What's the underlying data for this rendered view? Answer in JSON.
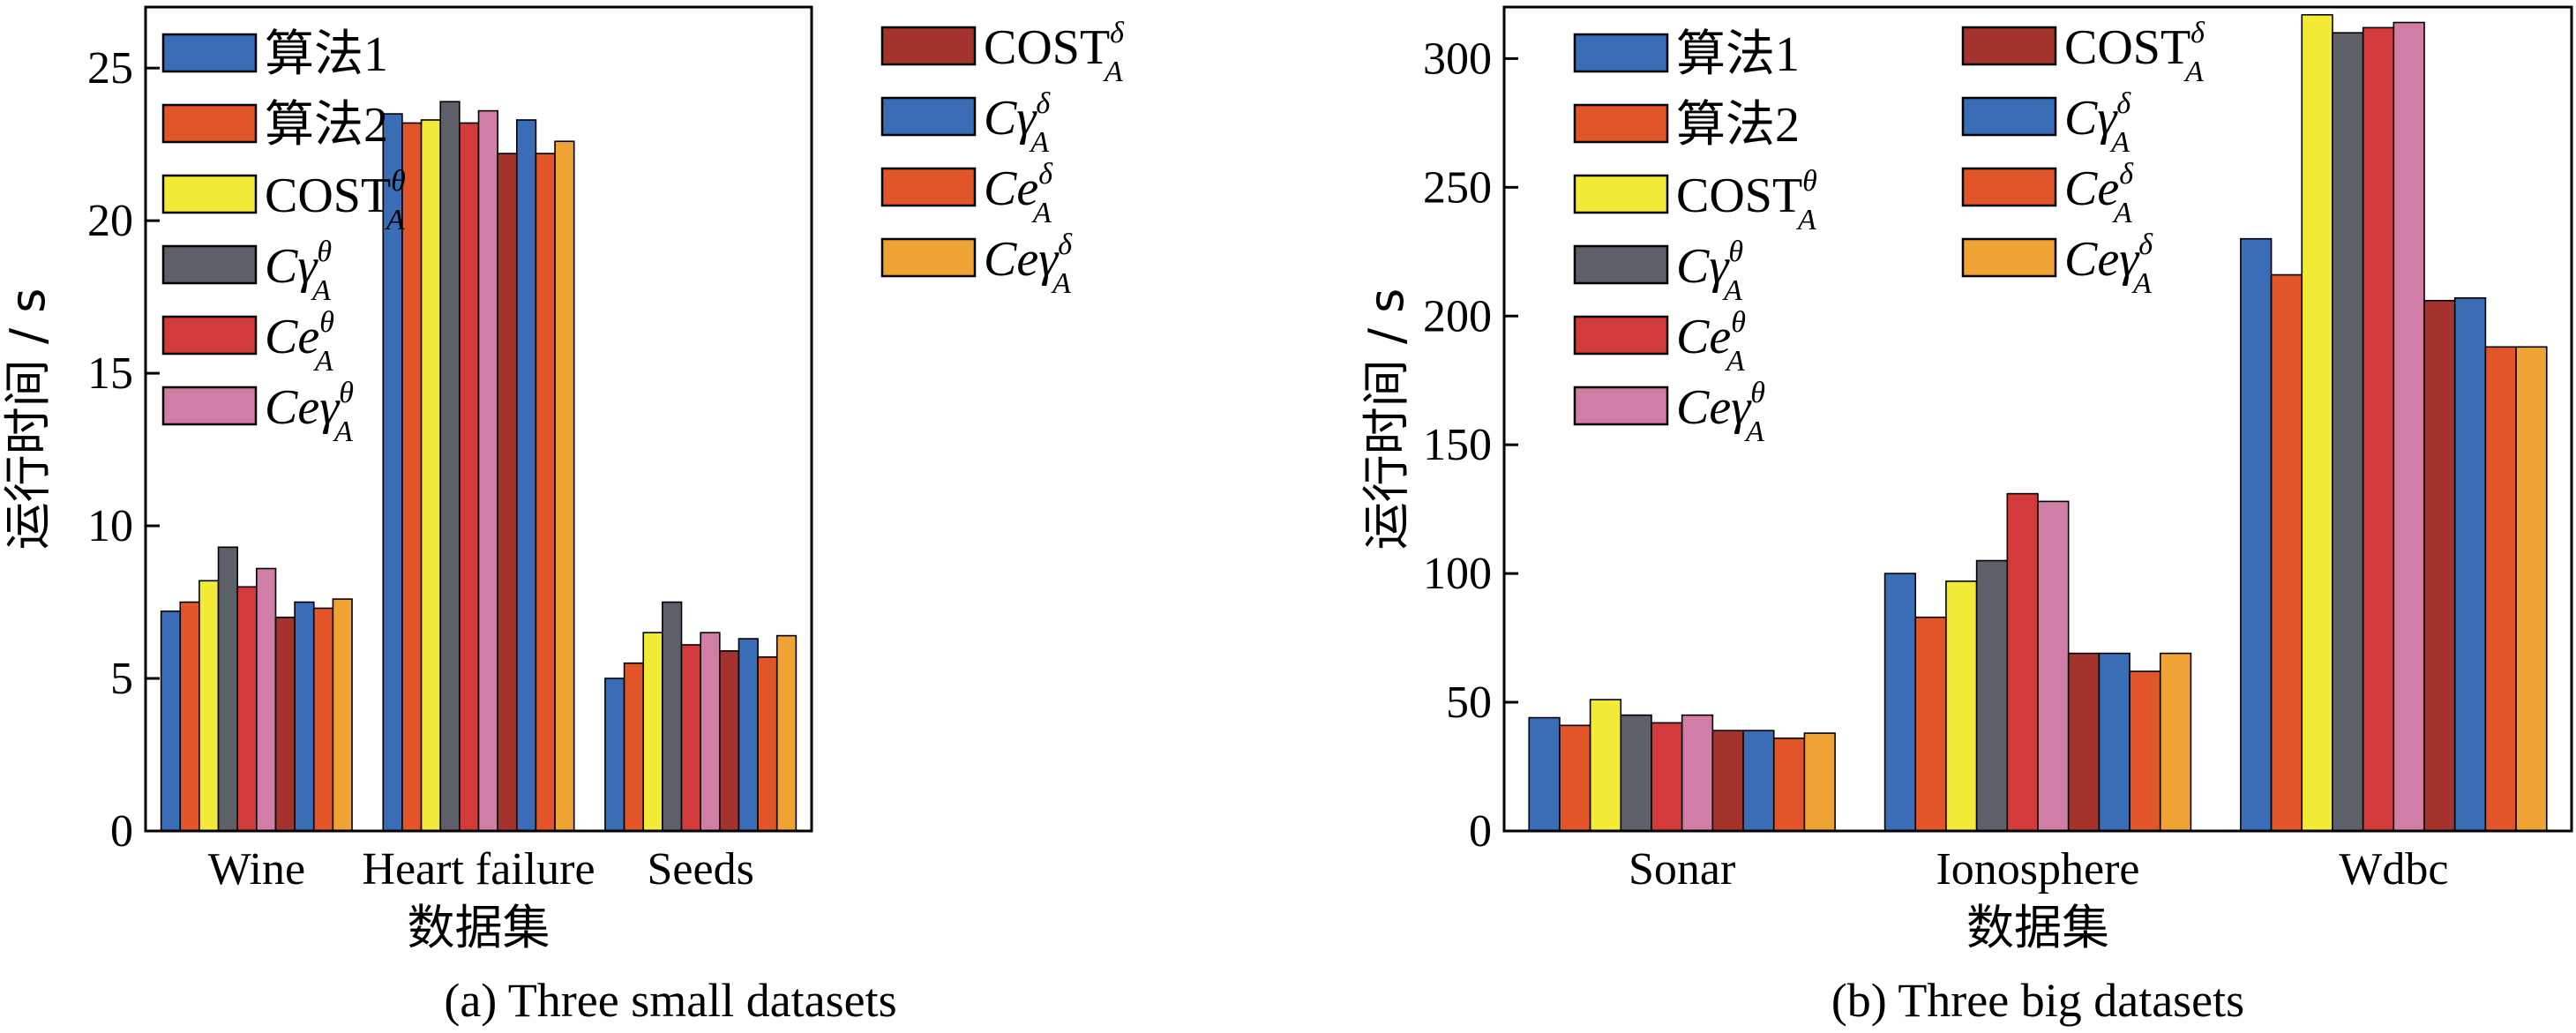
{
  "series_names": [
    {
      "main": "算法1",
      "italic": false,
      "sup": "",
      "sub": ""
    },
    {
      "main": "算法2",
      "italic": false,
      "sup": "",
      "sub": ""
    },
    {
      "main": "COST",
      "italic": false,
      "sup": "θ",
      "sub": "A"
    },
    {
      "main": "Cγ",
      "italic": true,
      "sup": "θ",
      "sub": "A"
    },
    {
      "main": "Ce",
      "italic": true,
      "sup": "θ",
      "sub": "A"
    },
    {
      "main": "Ceγ",
      "italic": true,
      "sup": "θ",
      "sub": "A"
    },
    {
      "main": "COST",
      "italic": false,
      "sup": "δ",
      "sub": "A"
    },
    {
      "main": "Cγ",
      "italic": true,
      "sup": "δ",
      "sub": "A"
    },
    {
      "main": "Ce",
      "italic": true,
      "sup": "δ",
      "sub": "A"
    },
    {
      "main": "Ceγ",
      "italic": true,
      "sup": "δ",
      "sub": "A"
    }
  ],
  "colors": [
    "#3a6db5",
    "#e15529",
    "#f2ea36",
    "#5d6068",
    "#d23a3c",
    "#d07ea6",
    "#a3332c",
    "#3a6db5",
    "#e15529",
    "#efa334"
  ],
  "chart_data": [
    {
      "type": "bar",
      "title": "(a) Three small datasets",
      "xlabel": "数据集",
      "ylabel": "运行时间 / s",
      "ylim": [
        0,
        27
      ],
      "yticks": [
        0,
        5,
        10,
        15,
        20,
        25
      ],
      "categories": [
        "Wine",
        "Heart failure",
        "Seeds"
      ],
      "legend": "upper-left two columns",
      "series": [
        {
          "values": [
            7.2,
            23.5,
            5.0
          ]
        },
        {
          "values": [
            7.5,
            23.2,
            5.5
          ]
        },
        {
          "values": [
            8.2,
            23.3,
            6.5
          ]
        },
        {
          "values": [
            9.3,
            23.9,
            7.5
          ]
        },
        {
          "values": [
            8.0,
            23.2,
            6.1
          ]
        },
        {
          "values": [
            8.6,
            23.6,
            6.5
          ]
        },
        {
          "values": [
            7.0,
            22.2,
            5.9
          ]
        },
        {
          "values": [
            7.5,
            23.3,
            6.3
          ]
        },
        {
          "values": [
            7.3,
            22.2,
            5.7
          ]
        },
        {
          "values": [
            7.6,
            22.6,
            6.4
          ]
        }
      ]
    },
    {
      "type": "bar",
      "title": "(b) Three big datasets",
      "xlabel": "数据集",
      "ylabel": "运行时间 / s",
      "ylim": [
        0,
        320
      ],
      "yticks": [
        0,
        50,
        100,
        150,
        200,
        250,
        300
      ],
      "categories": [
        "Sonar",
        "Ionosphere",
        "Wdbc"
      ],
      "legend": "upper-left two columns",
      "series": [
        {
          "values": [
            44,
            100,
            230
          ]
        },
        {
          "values": [
            41,
            83,
            216
          ]
        },
        {
          "values": [
            51,
            97,
            317
          ]
        },
        {
          "values": [
            45,
            105,
            310
          ]
        },
        {
          "values": [
            42,
            131,
            312
          ]
        },
        {
          "values": [
            45,
            128,
            314
          ]
        },
        {
          "values": [
            39,
            69,
            206
          ]
        },
        {
          "values": [
            39,
            69,
            207
          ]
        },
        {
          "values": [
            36,
            62,
            188
          ]
        },
        {
          "values": [
            38,
            69,
            188
          ]
        }
      ]
    }
  ]
}
